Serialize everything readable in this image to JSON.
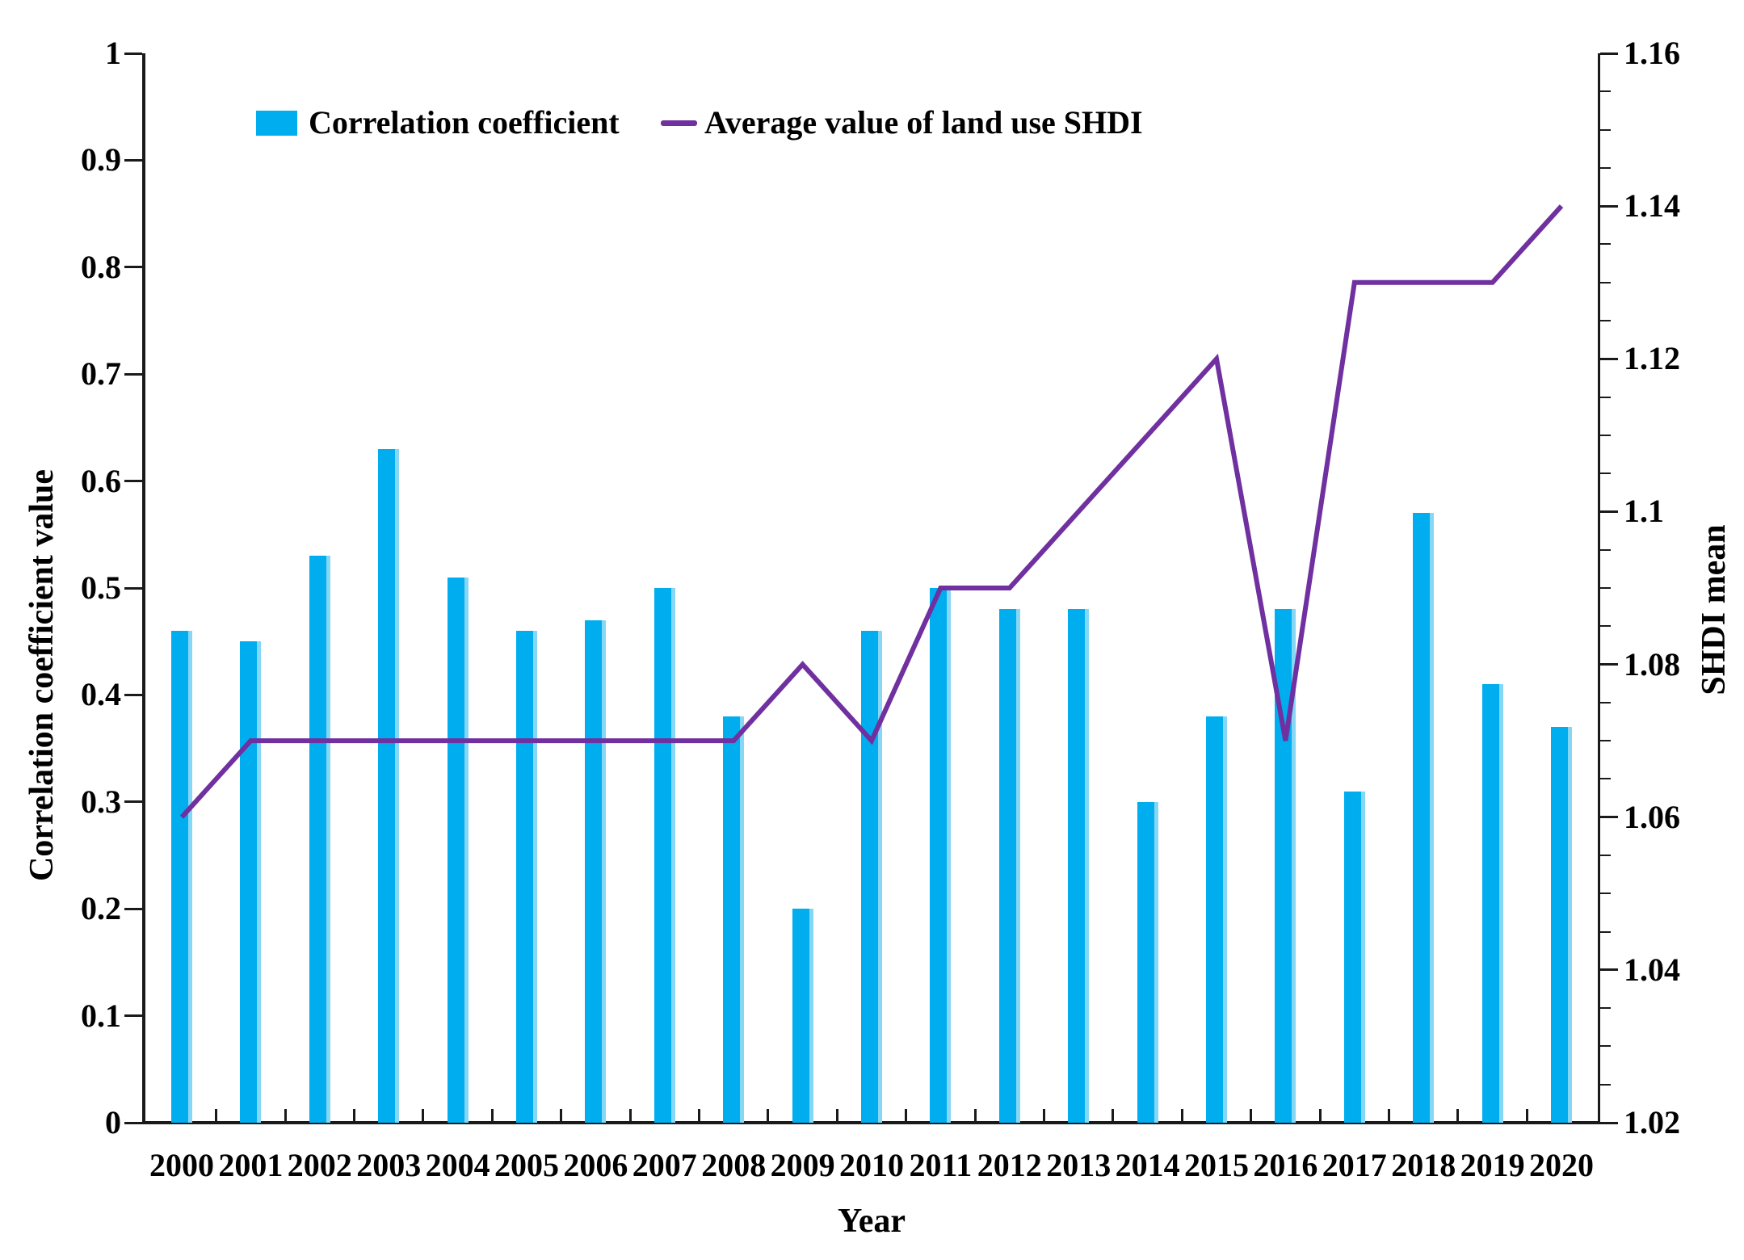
{
  "chart_data": {
    "type": "bar",
    "subtype": "bar+line dual axis",
    "categories": [
      "2000",
      "2001",
      "2002",
      "2003",
      "2004",
      "2005",
      "2006",
      "2007",
      "2008",
      "2009",
      "2010",
      "2011",
      "2012",
      "2013",
      "2014",
      "2015",
      "2016",
      "2017",
      "2018",
      "2019",
      "2020"
    ],
    "series": [
      {
        "name": "Correlation coefficient",
        "type": "bar",
        "axis": "left",
        "color": "#00AEEF",
        "values": [
          0.46,
          0.45,
          0.53,
          0.63,
          0.51,
          0.46,
          0.47,
          0.5,
          0.38,
          0.2,
          0.46,
          0.5,
          0.48,
          0.48,
          0.3,
          0.38,
          0.48,
          0.31,
          0.57,
          0.41,
          0.37
        ]
      },
      {
        "name": "Average value of land use SHDI",
        "type": "line",
        "axis": "right",
        "color": "#7030A0",
        "values": [
          1.06,
          1.07,
          1.07,
          1.07,
          1.07,
          1.07,
          1.07,
          1.07,
          1.07,
          1.08,
          1.07,
          1.09,
          1.09,
          1.1,
          1.11,
          1.12,
          1.07,
          1.13,
          1.13,
          1.13,
          1.14
        ]
      }
    ],
    "left_axis": {
      "label": "Correlation coefficient value",
      "min": 0,
      "max": 1,
      "tick_step": 0.1,
      "ticks": [
        "0",
        "0.1",
        "0.2",
        "0.3",
        "0.4",
        "0.5",
        "0.6",
        "0.7",
        "0.8",
        "0.9",
        "1"
      ]
    },
    "right_axis": {
      "label": "SHDI mean",
      "min": 1.02,
      "max": 1.16,
      "tick_step": 0.02,
      "minor_tick_step": 0.005,
      "ticks": [
        "1.02",
        "1.04",
        "1.06",
        "1.08",
        "1.1",
        "1.12",
        "1.14",
        "1.16"
      ]
    },
    "x_axis": {
      "label": "Year"
    },
    "legend": {
      "position": "top",
      "items": [
        "Correlation coefficient",
        "Average value of land use SHDI"
      ]
    },
    "grid": false
  }
}
